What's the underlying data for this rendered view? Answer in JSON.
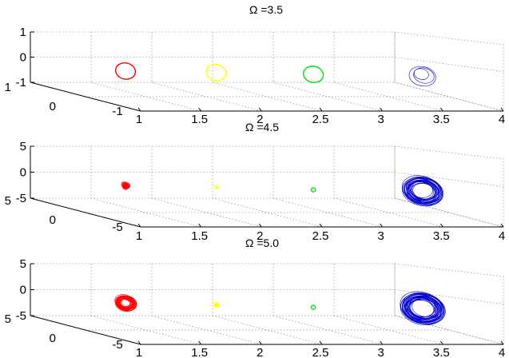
{
  "chart_data": [
    {
      "type": "scatter",
      "title": "Ω =3.5",
      "xlim": [
        1,
        4
      ],
      "xticks": [
        "1",
        "1.5",
        "2",
        "2.5",
        "3",
        "3.5",
        "4"
      ],
      "yticks": [
        "1",
        "0"
      ],
      "ylim_labels": [
        "-1"
      ],
      "zticks": [
        "1",
        "0",
        "-1"
      ],
      "grid": true,
      "series": [
        {
          "x": 1.2,
          "color": "#ff0000",
          "rx": 0.2,
          "rz": 0.5,
          "strands": 1
        },
        {
          "x": 1.95,
          "color": "#ffff00",
          "rx": 0.2,
          "rz": 0.5,
          "strands": 1
        },
        {
          "x": 2.75,
          "color": "#00dd00",
          "rx": 0.2,
          "rz": 0.5,
          "strands": 1
        },
        {
          "x": 3.65,
          "color": "#0000cc",
          "rx": 0.3,
          "rz": 0.6,
          "strands": 3
        }
      ]
    },
    {
      "type": "scatter",
      "title": "Ω =4.5",
      "xlim": [
        1,
        4
      ],
      "xticks": [
        "1",
        "1.5",
        "2",
        "2.5",
        "3",
        "3.5",
        "4"
      ],
      "yticks": [
        "5",
        "0"
      ],
      "ylim_labels": [
        "-5"
      ],
      "zticks": [
        "5",
        "0",
        "-5"
      ],
      "grid": true,
      "series": [
        {
          "x": 1.2,
          "color": "#ff0000",
          "rx": 0.1,
          "rz": 0.9,
          "strands": 14
        },
        {
          "x": 1.95,
          "color": "#ffff00",
          "rx": 0.05,
          "rz": 0.35,
          "strands": 4
        },
        {
          "x": 2.75,
          "color": "#00dd00",
          "rx": 0.08,
          "rz": 0.6,
          "strands": 1
        },
        {
          "x": 3.65,
          "color": "#0000cc",
          "rx": 0.34,
          "rz": 4.2,
          "strands": 26
        }
      ]
    },
    {
      "type": "scatter",
      "title": "Ω =5.0",
      "xlim": [
        1,
        4
      ],
      "xticks": [
        "1",
        "1.5",
        "2",
        "2.5",
        "3",
        "3.5",
        "4"
      ],
      "yticks": [
        "5",
        "0"
      ],
      "ylim_labels": [
        "-5"
      ],
      "zticks": [
        "5",
        "0",
        "-5"
      ],
      "grid": true,
      "series": [
        {
          "x": 1.2,
          "color": "#ff0000",
          "rx": 0.3,
          "rz": 2.2,
          "strands": 30
        },
        {
          "x": 1.95,
          "color": "#ffff00",
          "rx": 0.1,
          "rz": 0.6,
          "strands": 8
        },
        {
          "x": 2.75,
          "color": "#00dd00",
          "rx": 0.08,
          "rz": 0.6,
          "strands": 1
        },
        {
          "x": 3.65,
          "color": "#0000cc",
          "rx": 0.34,
          "rz": 4.6,
          "strands": 30
        }
      ]
    }
  ]
}
